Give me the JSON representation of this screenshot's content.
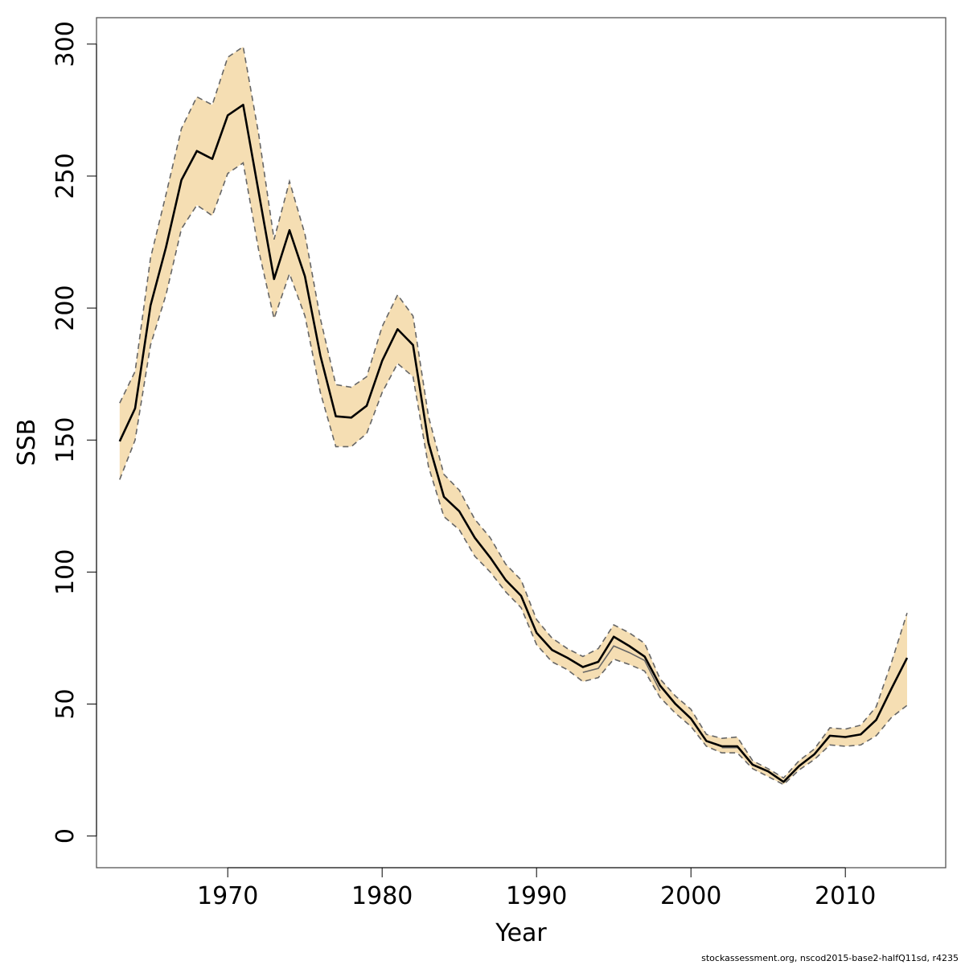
{
  "chart_data": {
    "type": "line",
    "title": "",
    "xlabel": "Year",
    "ylabel": "SSB",
    "xlim": [
      1961.5,
      2016.5
    ],
    "ylim": [
      -12,
      310
    ],
    "x_ticks": [
      1970,
      1980,
      1990,
      2000,
      2010
    ],
    "y_ticks": [
      0,
      50,
      100,
      150,
      200,
      250,
      300
    ],
    "grid": false,
    "legend": "none",
    "colors": {
      "band": "#f5deb3",
      "median": "#000000",
      "lower_line": "#666666",
      "dashed": "#666666",
      "frame": "#555555"
    },
    "x": [
      1963,
      1964,
      1965,
      1966,
      1967,
      1968,
      1969,
      1970,
      1971,
      1972,
      1973,
      1974,
      1975,
      1976,
      1977,
      1978,
      1979,
      1980,
      1981,
      1982,
      1983,
      1984,
      1985,
      1986,
      1987,
      1988,
      1989,
      1990,
      1991,
      1992,
      1993,
      1994,
      1995,
      1996,
      1997,
      1998,
      1999,
      2000,
      2001,
      2002,
      2003,
      2004,
      2005,
      2006,
      2007,
      2008,
      2009,
      2010,
      2011,
      2012,
      2013,
      2014
    ],
    "series": [
      {
        "values": [
          149.5,
          162,
          201,
          223,
          248.5,
          259.5,
          256.5,
          273,
          277,
          244,
          211,
          229.5,
          212,
          182,
          159,
          158.5,
          163,
          180,
          192,
          186,
          149,
          128.5,
          123,
          113,
          105.5,
          97,
          91,
          77,
          70.5,
          67.5,
          64,
          66,
          75.5,
          72,
          68,
          57,
          50,
          44.5,
          36,
          34,
          34,
          27,
          24.5,
          20.5,
          26.5,
          31,
          38,
          37.5,
          38.5,
          44,
          56,
          67.5
        ]
      },
      {
        "values": [
          135,
          150,
          186,
          205,
          230,
          239,
          235,
          251,
          255,
          222,
          196,
          213,
          197,
          168,
          147.5,
          147.5,
          152.5,
          168,
          179,
          174,
          140,
          121,
          116,
          106,
          100,
          92.5,
          86.5,
          72.5,
          66,
          63,
          58.5,
          60,
          67,
          65,
          62.5,
          52.5,
          46.5,
          41.5,
          34,
          31.5,
          31.5,
          25.5,
          22.5,
          19.5,
          25,
          29,
          34.5,
          34,
          34.5,
          38,
          45,
          49.5
        ]
      },
      {
        "values": [
          164,
          176,
          219,
          243,
          268,
          280,
          277,
          295,
          299,
          266,
          226,
          248,
          228,
          196,
          171,
          170,
          174,
          193,
          205,
          197,
          159,
          137,
          131,
          120,
          113,
          103,
          97,
          82,
          75,
          71,
          68,
          71,
          80,
          77,
          73,
          59.5,
          53,
          48,
          38.5,
          37,
          37.5,
          28.5,
          25.5,
          22,
          28.5,
          33,
          41,
          40.5,
          42,
          49,
          66,
          84.5
        ]
      },
      {
        "values": [
          null,
          null,
          null,
          null,
          null,
          258,
          null,
          null,
          null,
          null,
          null,
          null,
          null,
          null,
          null,
          null,
          null,
          null,
          null,
          null,
          null,
          null,
          null,
          null,
          null,
          null,
          null,
          null,
          null,
          null,
          62,
          63.5,
          72,
          69.5,
          66.5,
          55,
          null,
          null,
          null,
          33.5,
          33.5,
          null,
          null,
          null,
          null,
          null,
          null,
          null,
          null,
          null,
          null,
          null
        ]
      }
    ]
  },
  "footer": "stockassessment.org, nscod2015-base2-halfQ11sd, r4235"
}
